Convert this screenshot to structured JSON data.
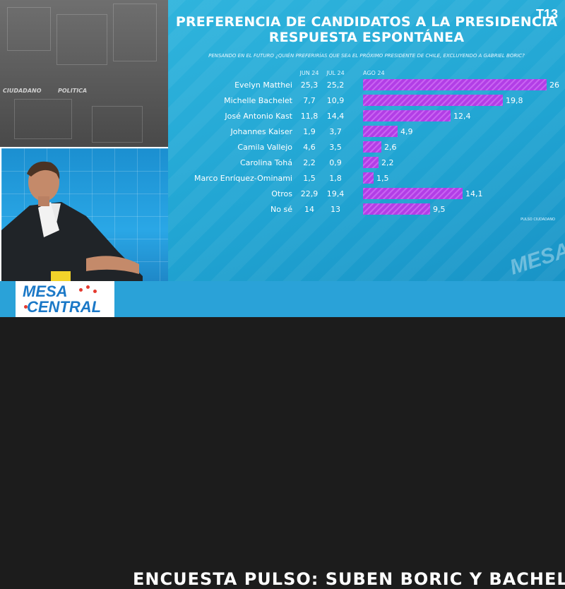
{
  "studio": {
    "label_left": "CIUDADANO",
    "label_right": "POLITICA"
  },
  "chart_data": {
    "type": "bar",
    "title_lines": [
      "PREFERENCIA DE CANDIDATOS A LA PRESIDENCIA",
      "RESPUESTA ESPONTÁNEA"
    ],
    "subtitle": "PENSANDO EN EL FUTURO ¿QUIÉN PREFERIRÍAS QUE SEA EL PRÓXIMO PRESIDENTE DE CHILE, EXCLUYENDO A GABRIEL BORIC?",
    "column_headers": [
      "JUN 24",
      "JUL 24",
      "AGO 24"
    ],
    "categories": [
      "Evelyn Matthei",
      "Michelle Bachelet",
      "José Antonio Kast",
      "Johannes Kaiser",
      "Camila Vallejo",
      "Carolina Tohá",
      "Marco Enríquez-Ominami",
      "Otros",
      "No sé"
    ],
    "jun_24": [
      "25,3",
      "7,7",
      "11,8",
      "1,9",
      "4,6",
      "2,2",
      "1,5",
      "22,9",
      "14"
    ],
    "jul_24": [
      "25,2",
      "10,9",
      "14,4",
      "3,7",
      "3,5",
      "0,9",
      "1,8",
      "19,4",
      "13"
    ],
    "series": [
      {
        "name": "AGO 24",
        "values": [
          26,
          19.8,
          12.4,
          4.9,
          2.6,
          2.2,
          1.5,
          14.1,
          9.5
        ],
        "labels": [
          "26",
          "19,8",
          "12,4",
          "4,9",
          "2,6",
          "2,2",
          "1,5",
          "14,1",
          "9,5"
        ]
      }
    ],
    "source": "PULSO CIUDADANO",
    "bar_color": "#b23ee6"
  },
  "branding": {
    "channel_logo": "T13",
    "watermark": "MESA"
  },
  "lower_third": {
    "show_line1": "MESA",
    "show_line2": "CENTRAL",
    "headline": "ENCUESTA PULSO: SUBEN BORIC Y BACHELET"
  }
}
